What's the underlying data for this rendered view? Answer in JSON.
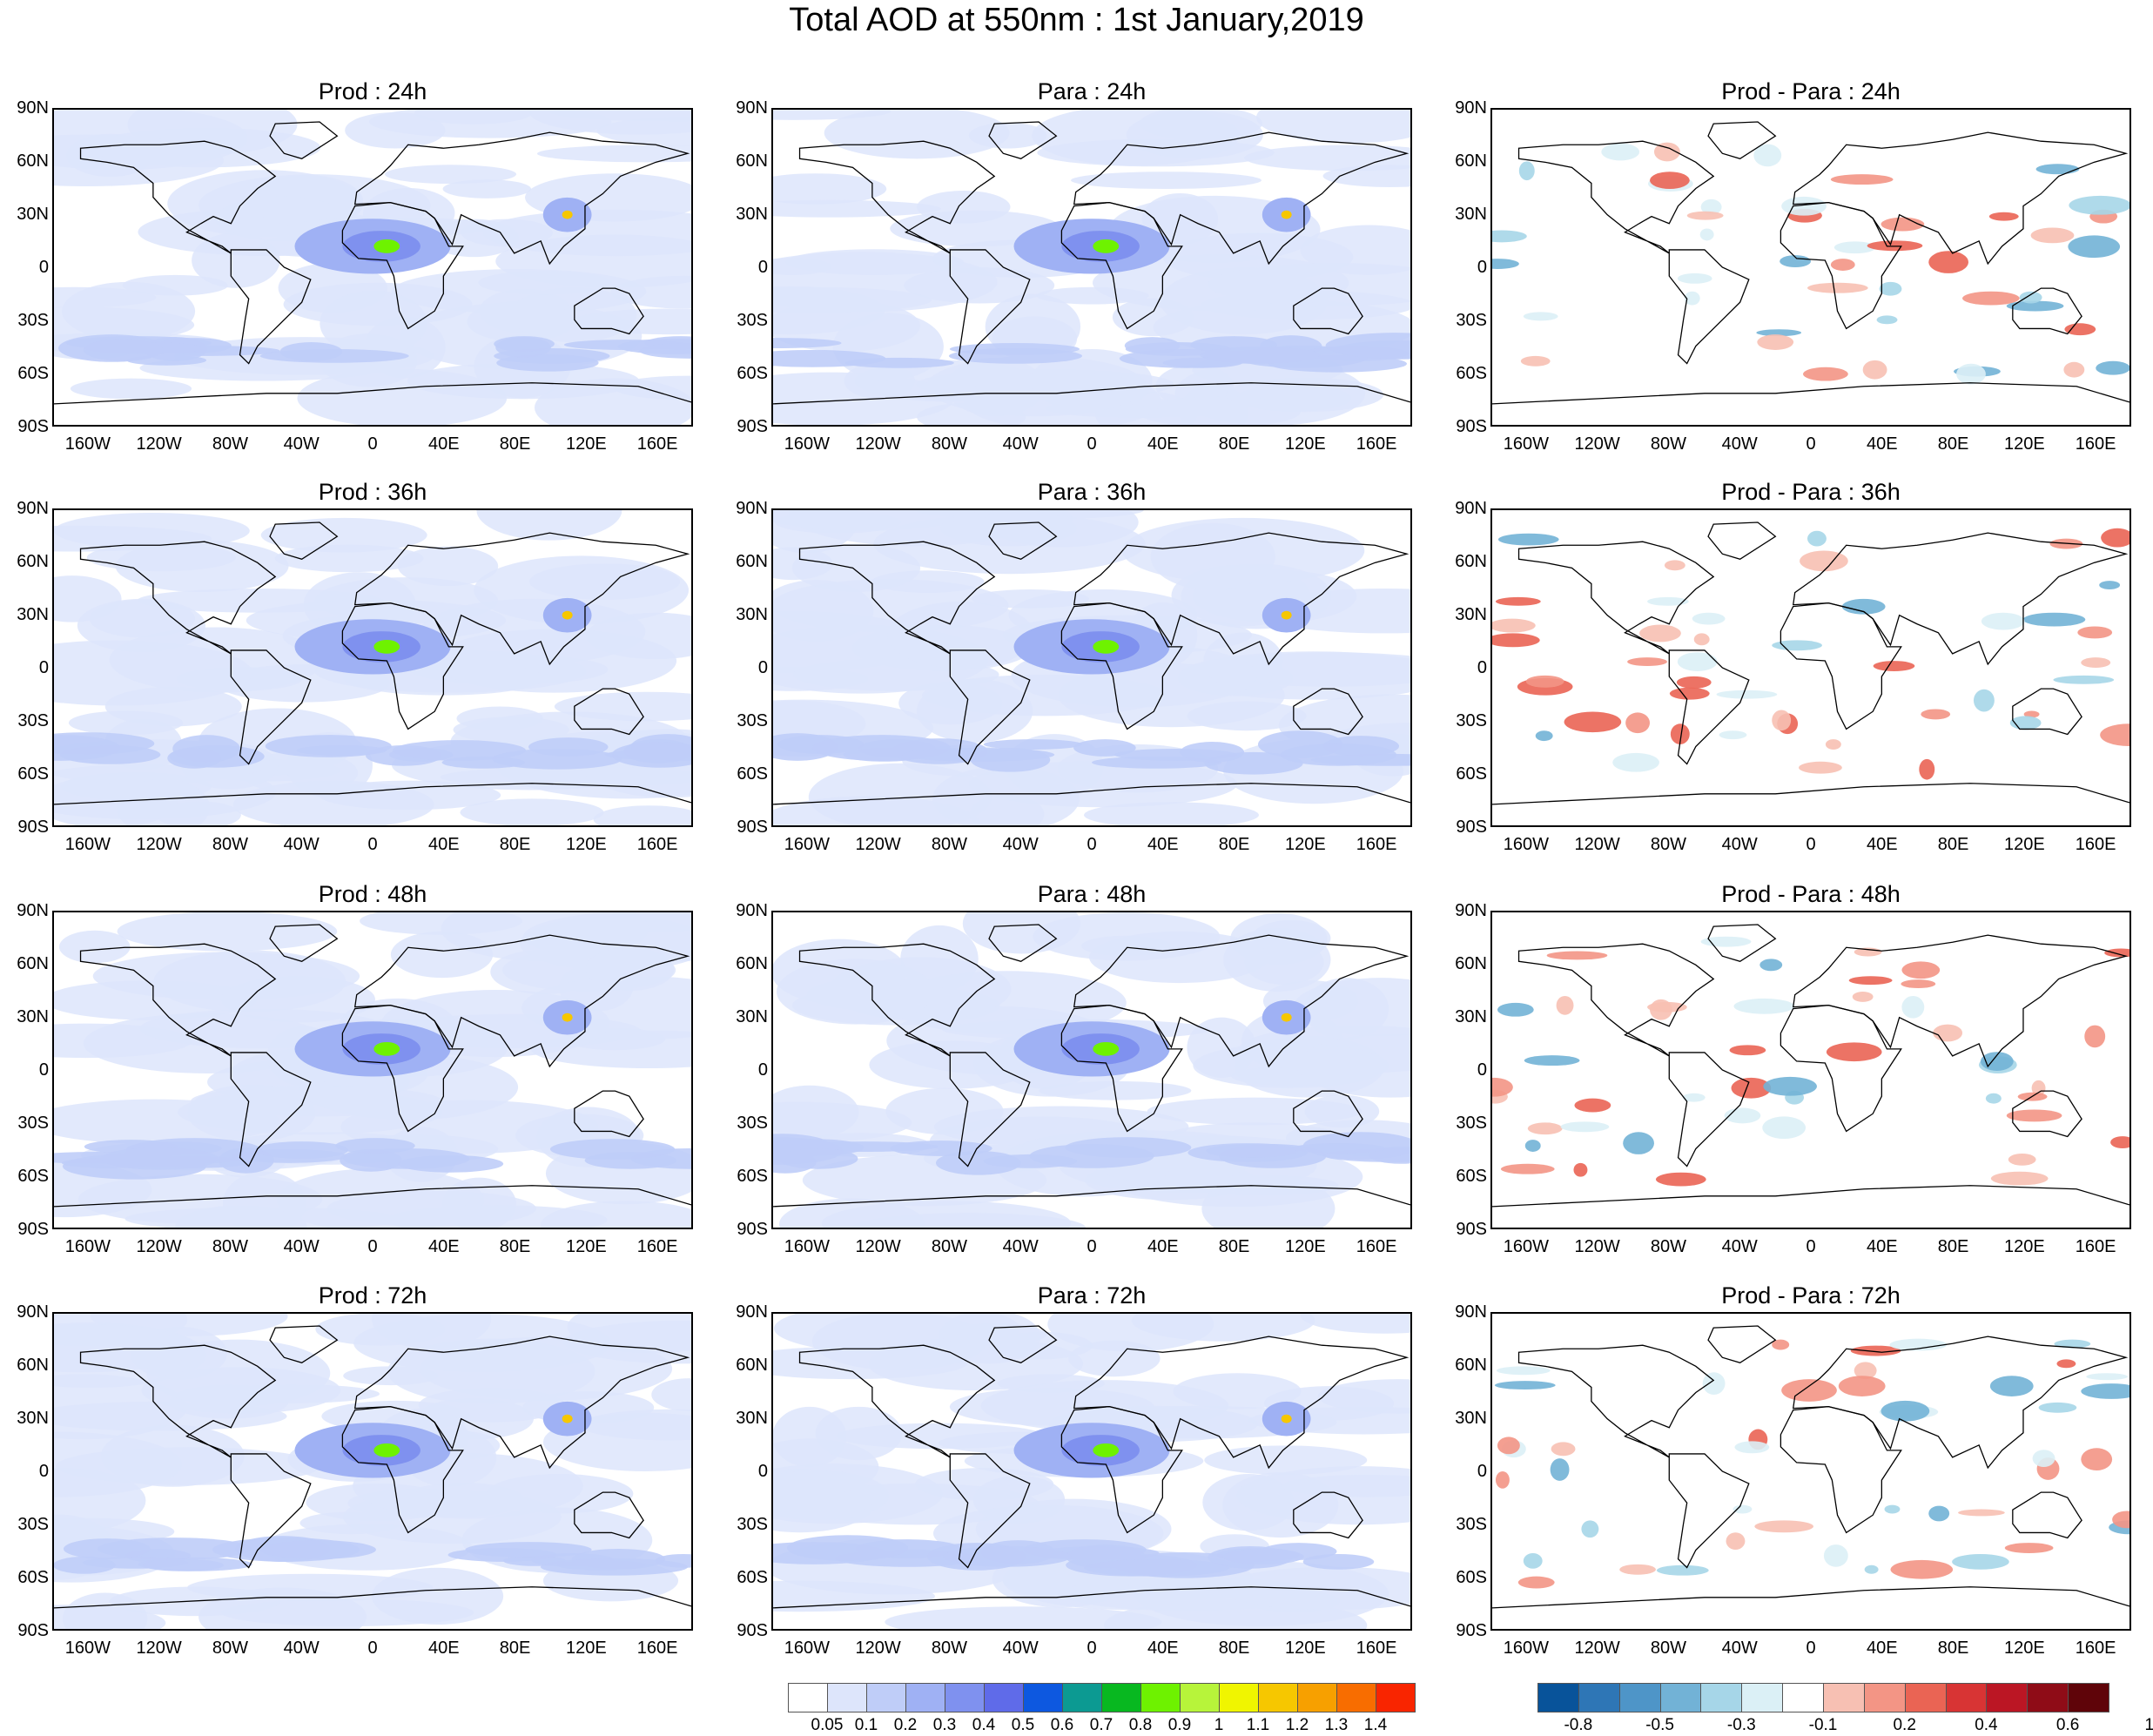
{
  "title": "Total AOD at 550nm : 1st January,2019",
  "lat_labels": [
    "90N",
    "60N",
    "30N",
    "0",
    "30S",
    "60S",
    "90S"
  ],
  "lon_labels": [
    "160W",
    "120W",
    "80W",
    "40W",
    "0",
    "40E",
    "80E",
    "120E",
    "160E"
  ],
  "panels": [
    {
      "title": "Prod : 24h",
      "kind": "aod"
    },
    {
      "title": "Para : 24h",
      "kind": "aod"
    },
    {
      "title": "Prod - Para : 24h",
      "kind": "diff"
    },
    {
      "title": "Prod : 36h",
      "kind": "aod"
    },
    {
      "title": "Para : 36h",
      "kind": "aod"
    },
    {
      "title": "Prod - Para : 36h",
      "kind": "diff"
    },
    {
      "title": "Prod : 48h",
      "kind": "aod"
    },
    {
      "title": "Para : 48h",
      "kind": "aod"
    },
    {
      "title": "Prod - Para : 48h",
      "kind": "diff"
    },
    {
      "title": "Prod : 72h",
      "kind": "aod"
    },
    {
      "title": "Para : 72h",
      "kind": "aod"
    },
    {
      "title": "Prod - Para : 72h",
      "kind": "diff"
    }
  ],
  "aod_colorbar": {
    "colors": [
      "#ffffff",
      "#dde5fb",
      "#bfcdf8",
      "#9fb1f4",
      "#7f91ef",
      "#5f6be9",
      "#0d58e0",
      "#0c9a92",
      "#08b820",
      "#6ef200",
      "#b7f43a",
      "#f0f500",
      "#f6c700",
      "#f7a000",
      "#f86d00",
      "#f92500"
    ],
    "labels": [
      "0.05",
      "0.1",
      "0.2",
      "0.3",
      "0.4",
      "0.5",
      "0.6",
      "0.7",
      "0.8",
      "0.9",
      "1",
      "1.1",
      "1.2",
      "1.3",
      "1.4"
    ]
  },
  "diff_colorbar": {
    "colors": [
      "#08539a",
      "#2e76b6",
      "#4e95c8",
      "#72b2d6",
      "#a6d6e8",
      "#dbf0f6",
      "#ffffff",
      "#f7c0b3",
      "#f39585",
      "#ea6454",
      "#d83434",
      "#bb1624",
      "#8f0c17",
      "#5f0409"
    ],
    "labels": [
      "-0.8",
      "-0.5",
      "-0.3",
      "-0.1",
      "0.2",
      "0.4",
      "0.6",
      "1"
    ],
    "label_at_boundaries": [
      1,
      3,
      5,
      7,
      9,
      11,
      13,
      15
    ]
  }
}
